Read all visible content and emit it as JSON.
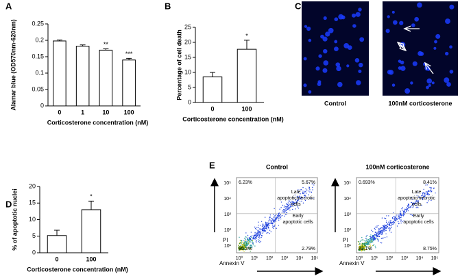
{
  "chart_data": [
    {
      "type": "bar",
      "label": "A",
      "y_label": "Alamar blue (OD570nm-620nm)",
      "x_label": "Corticosterone concentration (nM)",
      "categories": [
        "0",
        "1",
        "10",
        "100"
      ],
      "values": [
        0.198,
        0.182,
        0.17,
        0.14
      ],
      "errors": [
        0.003,
        0.004,
        0.004,
        0.005
      ],
      "annotations": [
        null,
        null,
        "**",
        "***"
      ],
      "color": "#ffffff",
      "ylim": [
        0,
        0.25
      ],
      "yticks": [
        0,
        0.05,
        0.1,
        0.15,
        0.2,
        0.25
      ]
    },
    {
      "type": "bar",
      "label": "B",
      "y_label": "Percentage of cell death",
      "x_label": "Corticosterone concentration (nM)",
      "categories": [
        "0",
        "100"
      ],
      "values": [
        8.5,
        17.7
      ],
      "errors": [
        1.5,
        3
      ],
      "annotations": [
        null,
        "*"
      ],
      "color": "#ffffff",
      "ylim": [
        0,
        25
      ],
      "yticks": [
        0,
        5,
        10,
        15,
        20,
        25
      ]
    },
    {
      "type": "bar",
      "label": "D",
      "y_label": "% of apoptotic nuclei",
      "x_label": "Corticosterone concentration (nM)",
      "categories": [
        "0",
        "100"
      ],
      "values": [
        5.2,
        13
      ],
      "errors": [
        1.6,
        2.6
      ],
      "annotations": [
        null,
        "*"
      ],
      "color": "#ffffff",
      "ylim": [
        0,
        20
      ],
      "yticks": [
        0,
        5,
        10,
        15,
        20
      ]
    }
  ],
  "image_panel": {
    "label": "C",
    "captions": [
      "Control",
      "100nM corticosterone"
    ]
  },
  "flow_panel": {
    "label": "E",
    "x_label": "Annexin V",
    "y_label": "PI",
    "ticks": [
      "10⁰",
      "10¹",
      "10²",
      "10³",
      "10⁴",
      "10⁵"
    ],
    "plots": [
      {
        "title": "Control",
        "quadrants": [
          "6.23%",
          "5.67%",
          "85.3%",
          "2.79%"
        ],
        "late": "Late apoptotic/necrotic cells",
        "early": "Early apoptotic cells"
      },
      {
        "title": "100nM corticosterone",
        "quadrants": [
          "0.693%",
          "8.41%",
          "82.1%",
          "8.75%"
        ],
        "late": "Late apoptotic/necrotic cells",
        "early": "Early apoptotic cells"
      }
    ]
  }
}
